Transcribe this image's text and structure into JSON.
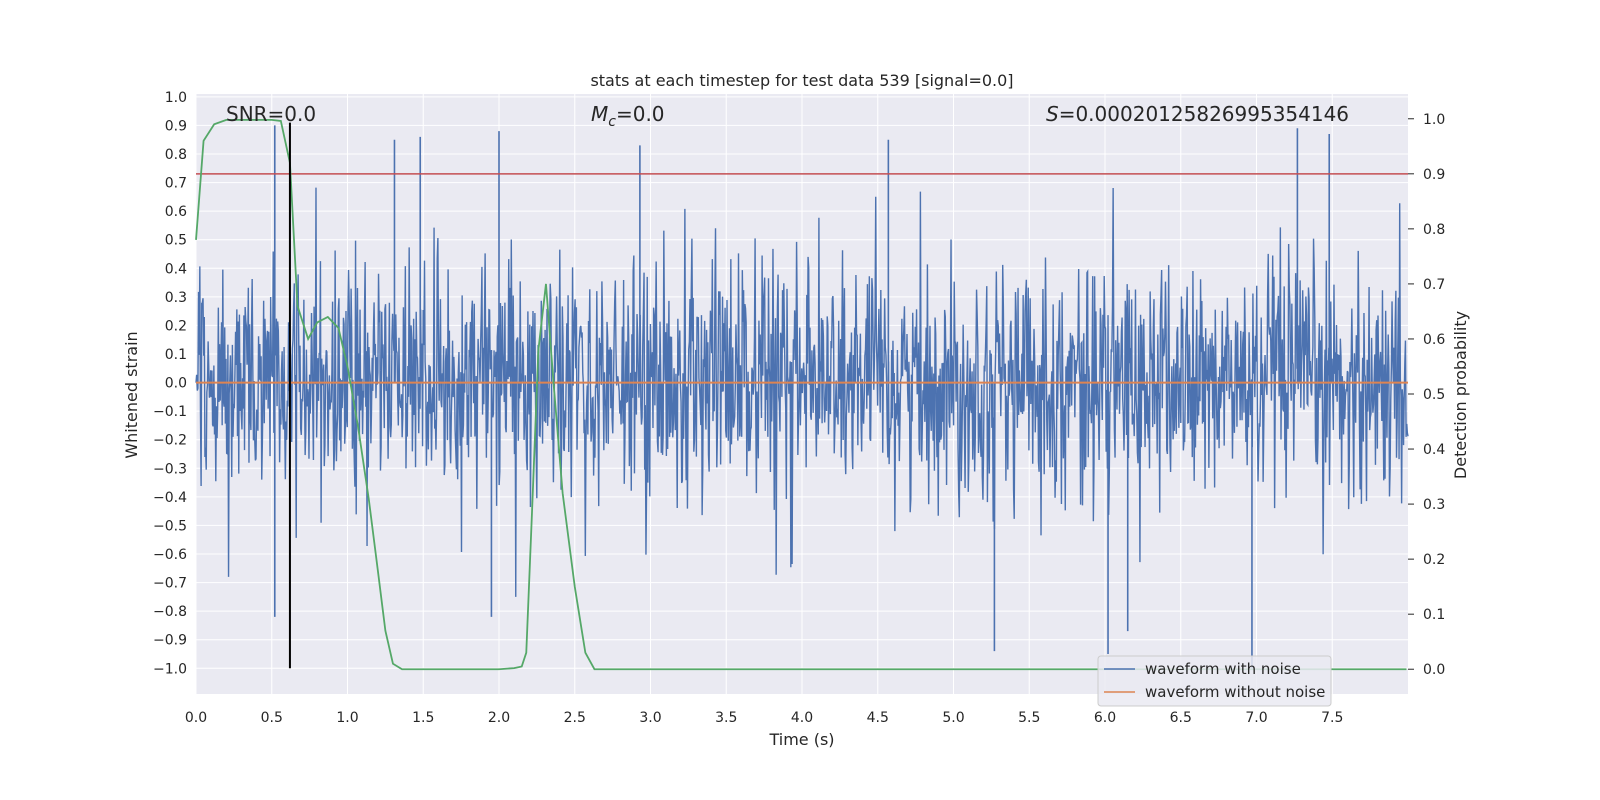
{
  "chart_data": {
    "type": "line",
    "title": "stats at each timestep for test data 539 [signal=0.0]",
    "xlabel": "Time (s)",
    "ylabel": "Whitened strain",
    "y2label": "Detection probability",
    "xlim": [
      0.0,
      8.0
    ],
    "ylim": [
      -1.09,
      1.01
    ],
    "y2lim": [
      -0.045,
      1.045
    ],
    "xticks": [
      "0.0",
      "0.5",
      "1.0",
      "1.5",
      "2.0",
      "2.5",
      "3.0",
      "3.5",
      "4.0",
      "4.5",
      "5.0",
      "5.5",
      "6.0",
      "6.5",
      "7.0",
      "7.5"
    ],
    "yticks": [
      "1.0",
      "0.9",
      "0.8",
      "0.7",
      "0.6",
      "0.5",
      "0.4",
      "0.3",
      "0.2",
      "0.1",
      "0.0",
      "-0.1",
      "-0.2",
      "-0.3",
      "-0.4",
      "-0.5",
      "-0.6",
      "-0.7",
      "-0.8",
      "-0.9",
      "-1.0"
    ],
    "y2ticks": [
      "0.0",
      "0.1",
      "0.2",
      "0.3",
      "0.4",
      "0.5",
      "0.6",
      "0.7",
      "0.8",
      "0.9",
      "1.0"
    ],
    "annotations": {
      "snr": "SNR=0.0",
      "mc_symbol": "M",
      "mc_sub": "c",
      "mc_value": "=0.0",
      "s_symbol": "S",
      "s_value": "=0.00020125826995354146"
    },
    "legend": {
      "placement": "lower-right"
    },
    "series": [
      {
        "name": "waveform with noise",
        "color": "#4c72b0",
        "kind": "noise",
        "typical_range": [
          -0.35,
          0.35
        ],
        "envelope_max": 0.91,
        "envelope_min": -1.0,
        "spikes": [
          {
            "x": 0.52,
            "y": 0.9
          },
          {
            "x": 0.52,
            "y": -0.82
          },
          {
            "x": 1.31,
            "y": 0.85
          },
          {
            "x": 1.48,
            "y": 0.86
          },
          {
            "x": 2.0,
            "y": 0.88
          },
          {
            "x": 1.95,
            "y": -0.82
          },
          {
            "x": 2.93,
            "y": 0.83
          },
          {
            "x": 4.57,
            "y": 0.85
          },
          {
            "x": 5.27,
            "y": -0.94
          },
          {
            "x": 6.02,
            "y": -0.95
          },
          {
            "x": 6.15,
            "y": -0.87
          },
          {
            "x": 6.97,
            "y": -1.0
          },
          {
            "x": 7.27,
            "y": 0.89
          },
          {
            "x": 7.48,
            "y": 0.87
          }
        ]
      },
      {
        "name": "waveform without noise",
        "color": "#dd8452",
        "x": [
          0.0,
          8.0
        ],
        "y": [
          0.0,
          0.0
        ]
      },
      {
        "name": "",
        "axis": "right",
        "color": "#55a868",
        "x": [
          0.0,
          0.05,
          0.12,
          0.2,
          0.3,
          0.4,
          0.5,
          0.56,
          0.62,
          0.67,
          0.74,
          0.8,
          0.87,
          0.94,
          1.0,
          1.07,
          1.14,
          1.2,
          1.25,
          1.3,
          1.36,
          1.45,
          1.6,
          1.8,
          2.0,
          2.1,
          2.15,
          2.18,
          2.22,
          2.26,
          2.31,
          2.36,
          2.42,
          2.5,
          2.57,
          2.63,
          2.7,
          2.9,
          3.5,
          4.5,
          5.5,
          6.5,
          7.5,
          7.99
        ],
        "y": [
          0.78,
          0.96,
          0.99,
          0.998,
          0.998,
          0.998,
          0.998,
          0.996,
          0.92,
          0.66,
          0.6,
          0.63,
          0.64,
          0.62,
          0.55,
          0.44,
          0.31,
          0.18,
          0.07,
          0.01,
          0.0,
          0.0,
          0.0,
          0.0,
          0.0,
          0.002,
          0.005,
          0.03,
          0.3,
          0.58,
          0.7,
          0.52,
          0.32,
          0.15,
          0.03,
          0.0,
          0.0,
          0.0,
          0.0,
          0.0,
          0.0,
          0.0,
          0.0,
          0.0
        ]
      }
    ],
    "threshold": {
      "axis": "right",
      "value": 0.9,
      "color": "#c44e52"
    },
    "vline": {
      "x": 0.62,
      "ymin": -1.0,
      "ymax": 0.91,
      "color": "#000000"
    }
  }
}
